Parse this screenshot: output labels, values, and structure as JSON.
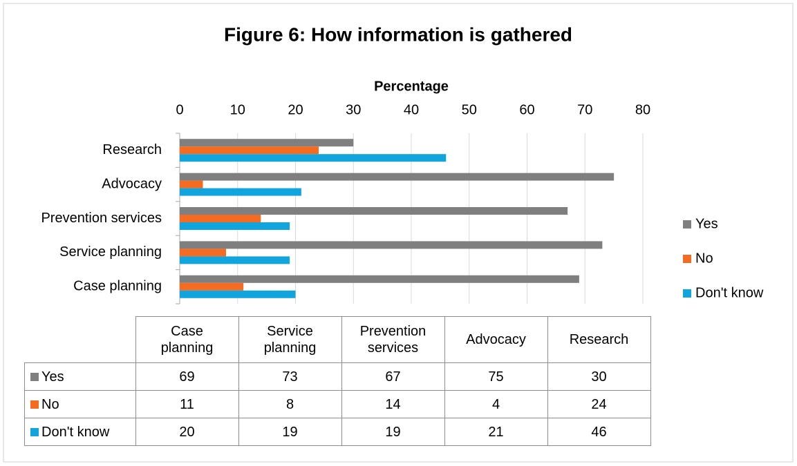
{
  "chart_data": {
    "type": "bar",
    "orientation": "horizontal",
    "title": "Figure 6: How information is gathered",
    "x_label": "Percentage",
    "categories": [
      "Case planning",
      "Service planning",
      "Prevention services",
      "Advocacy",
      "Research"
    ],
    "series": [
      {
        "name": "Yes",
        "color": "#7f7f7f",
        "values": [
          69,
          73,
          67,
          75,
          30
        ]
      },
      {
        "name": "No",
        "color": "#f36c21",
        "values": [
          11,
          8,
          14,
          4,
          24
        ]
      },
      {
        "name": "Don't know",
        "color": "#12a5dd",
        "values": [
          20,
          19,
          19,
          21,
          46
        ]
      }
    ],
    "xlim": [
      0,
      80
    ],
    "xticks": [
      0,
      10,
      20,
      30,
      40,
      50,
      60,
      70,
      80
    ],
    "grid": true,
    "legend": "right",
    "data_table": true
  }
}
